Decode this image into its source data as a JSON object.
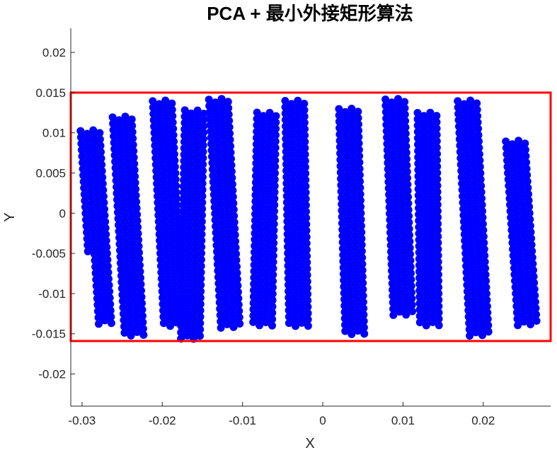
{
  "chart_data": {
    "type": "scatter",
    "title": "PCA + 最小外接矩形算法",
    "xlabel": "X",
    "ylabel": "Y",
    "xlim": [
      -0.0314,
      0.0284
    ],
    "ylim": [
      -0.024,
      0.023
    ],
    "xticks": [
      -0.03,
      -0.02,
      -0.01,
      0,
      0.01,
      0.02
    ],
    "xtick_labels": [
      "-0.03",
      "-0.02",
      "-0.01",
      "0",
      "0.01",
      "0.02"
    ],
    "yticks": [
      -0.02,
      -0.015,
      -0.01,
      -0.005,
      0,
      0.005,
      0.01,
      0.015,
      0.02
    ],
    "ytick_labels": [
      "-0.02",
      "-0.015",
      "-0.01",
      "-0.005",
      "0",
      "0.005",
      "0.01",
      "0.015",
      "0.02"
    ],
    "grid": false,
    "legend": "none",
    "series": [
      {
        "marker": "filled-circle",
        "color": "#0000ff",
        "point_spacing": 0.00079,
        "bands": [
          {
            "top": [
              -0.029,
              0.0103
            ],
            "bottom": [
              -0.0275,
              -0.0141
            ],
            "columns": 4,
            "bottom_cut": -0.0052
          },
          {
            "top": [
              -0.025,
              0.012
            ],
            "bottom": [
              -0.0235,
              -0.0153
            ],
            "columns": 4
          },
          {
            "top": [
              -0.02,
              0.014
            ],
            "bottom": [
              -0.0186,
              -0.0142
            ],
            "columns": 4
          },
          {
            "top": [
              -0.016,
              0.0128
            ],
            "bottom": [
              -0.0165,
              -0.016
            ],
            "columns": 4
          },
          {
            "top": [
              -0.013,
              0.0142
            ],
            "bottom": [
              -0.0115,
              -0.0143
            ],
            "columns": 4
          },
          {
            "top": [
              -0.007,
              0.0125
            ],
            "bottom": [
              -0.0075,
              -0.0143
            ],
            "columns": 4
          },
          {
            "top": [
              -0.0035,
              0.014
            ],
            "bottom": [
              -0.003,
              -0.0143
            ],
            "columns": 4
          },
          {
            "top": [
              0.0032,
              0.013
            ],
            "bottom": [
              0.004,
              -0.0153
            ],
            "columns": 4
          },
          {
            "top": [
              0.009,
              0.0142
            ],
            "bottom": [
              0.01,
              -0.013
            ],
            "columns": 4
          },
          {
            "top": [
              0.013,
              0.0125
            ],
            "bottom": [
              0.0133,
              -0.014
            ],
            "columns": 4
          },
          {
            "top": [
              0.018,
              0.014
            ],
            "bottom": [
              0.0195,
              -0.0153
            ],
            "columns": 4
          },
          {
            "top": [
              0.024,
              0.009
            ],
            "bottom": [
              0.0255,
              -0.014
            ],
            "columns": 4
          }
        ]
      }
    ],
    "bounding_rectangle": {
      "color": "#ff0000",
      "x": [
        -0.0314,
        0.0284
      ],
      "y": [
        -0.0159,
        0.015
      ]
    }
  }
}
